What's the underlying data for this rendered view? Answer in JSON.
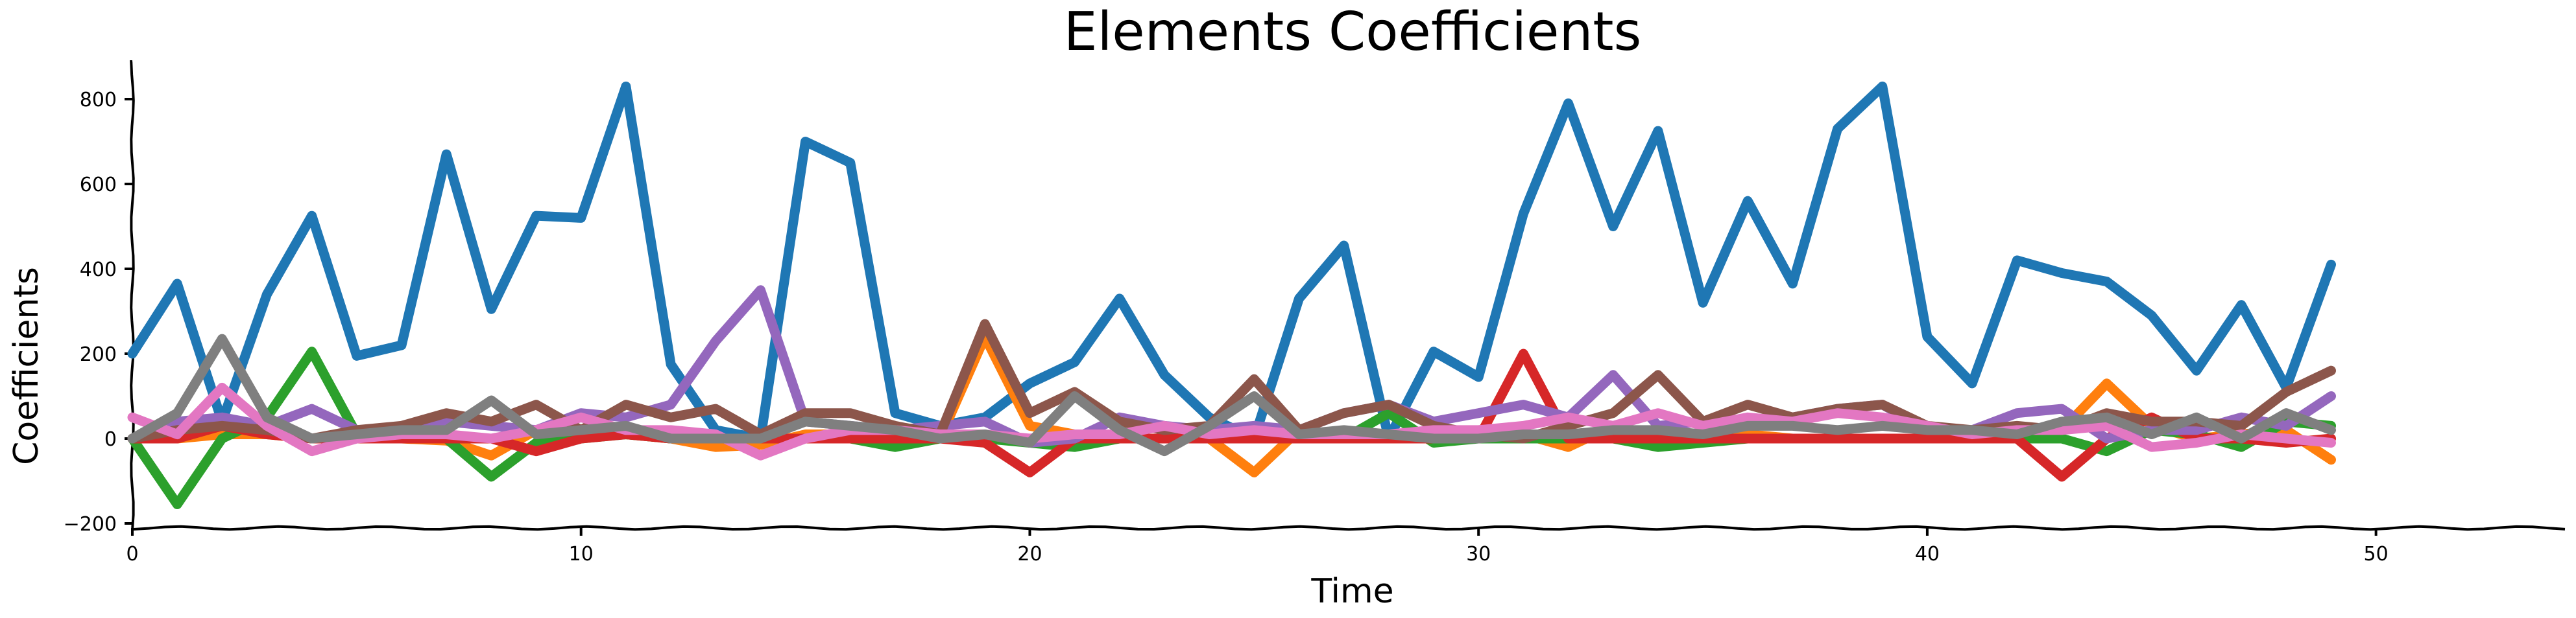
{
  "chart_data": {
    "type": "line",
    "title": "Elements Coefficients",
    "xlabel": "Time",
    "ylabel": "Coefficients",
    "xlim": [
      0,
      52
    ],
    "ylim": [
      -210,
      890
    ],
    "xticks": [
      0,
      10,
      20,
      30,
      40,
      50
    ],
    "yticks": [
      -200,
      0,
      200,
      400,
      600,
      800
    ],
    "grid": false,
    "legend": false,
    "x": [
      0,
      1,
      2,
      3,
      4,
      5,
      6,
      7,
      8,
      9,
      10,
      11,
      12,
      13,
      14,
      15,
      16,
      17,
      18,
      19,
      20,
      21,
      22,
      23,
      24,
      25,
      26,
      27,
      28,
      29,
      30,
      31,
      32,
      33,
      34,
      35,
      36,
      37,
      38,
      39,
      40,
      41,
      42,
      43,
      44,
      45,
      46,
      47,
      48,
      49
    ],
    "series": [
      {
        "color": "#1f77b4",
        "values": [
          200,
          365,
          40,
          340,
          525,
          195,
          220,
          670,
          305,
          525,
          520,
          830,
          175,
          20,
          0,
          700,
          650,
          60,
          30,
          50,
          130,
          180,
          330,
          150,
          50,
          0,
          330,
          455,
          0,
          205,
          145,
          530,
          790,
          500,
          725,
          320,
          560,
          365,
          730,
          830,
          240,
          130,
          420,
          390,
          370,
          290,
          160,
          315,
          120,
          410
        ]
      },
      {
        "color": "#ff7f0e",
        "values": [
          0,
          0,
          10,
          10,
          0,
          0,
          0,
          -5,
          -40,
          20,
          10,
          10,
          0,
          -20,
          -15,
          10,
          10,
          0,
          0,
          240,
          30,
          10,
          0,
          0,
          0,
          -80,
          20,
          0,
          10,
          0,
          0,
          10,
          -20,
          30,
          -5,
          0,
          10,
          0,
          0,
          0,
          0,
          10,
          0,
          20,
          130,
          30,
          0,
          10,
          20,
          -50
        ]
      },
      {
        "color": "#2ca02c",
        "values": [
          0,
          -155,
          0,
          50,
          205,
          10,
          0,
          0,
          -90,
          -10,
          0,
          10,
          0,
          0,
          0,
          0,
          0,
          -20,
          0,
          0,
          -10,
          -20,
          0,
          0,
          0,
          0,
          0,
          0,
          60,
          -10,
          0,
          0,
          0,
          0,
          -20,
          -10,
          0,
          0,
          0,
          0,
          0,
          0,
          0,
          0,
          -30,
          20,
          10,
          -20,
          40,
          30
        ]
      },
      {
        "color": "#d62728",
        "values": [
          0,
          0,
          30,
          10,
          0,
          0,
          0,
          0,
          0,
          -30,
          0,
          10,
          0,
          0,
          0,
          0,
          0,
          0,
          0,
          -10,
          -80,
          0,
          0,
          0,
          0,
          0,
          0,
          0,
          0,
          0,
          0,
          200,
          0,
          0,
          0,
          0,
          0,
          0,
          0,
          0,
          0,
          0,
          0,
          -90,
          0,
          50,
          0,
          0,
          -10,
          0
        ]
      },
      {
        "color": "#9467bd",
        "values": [
          0,
          40,
          50,
          30,
          70,
          20,
          20,
          40,
          30,
          20,
          60,
          50,
          80,
          230,
          350,
          40,
          30,
          20,
          30,
          40,
          -10,
          0,
          50,
          30,
          20,
          30,
          20,
          60,
          80,
          40,
          60,
          80,
          50,
          150,
          30,
          40,
          40,
          50,
          70,
          80,
          20,
          20,
          60,
          70,
          0,
          20,
          20,
          50,
          30,
          100
        ]
      },
      {
        "color": "#8c564b",
        "values": [
          0,
          20,
          30,
          20,
          0,
          20,
          30,
          60,
          40,
          80,
          20,
          80,
          50,
          70,
          10,
          60,
          60,
          30,
          10,
          270,
          60,
          110,
          40,
          20,
          30,
          140,
          20,
          60,
          80,
          30,
          10,
          0,
          30,
          60,
          150,
          40,
          80,
          50,
          70,
          80,
          30,
          20,
          30,
          20,
          60,
          40,
          40,
          30,
          110,
          160
        ]
      },
      {
        "color": "#e377c2",
        "values": [
          50,
          10,
          120,
          30,
          -30,
          0,
          10,
          10,
          0,
          20,
          50,
          20,
          20,
          10,
          -40,
          0,
          20,
          20,
          10,
          10,
          0,
          10,
          10,
          30,
          10,
          20,
          10,
          10,
          10,
          20,
          20,
          30,
          50,
          30,
          60,
          30,
          50,
          40,
          60,
          50,
          30,
          10,
          20,
          20,
          30,
          -20,
          -10,
          10,
          0,
          -10
        ]
      },
      {
        "color": "#7f7f7f",
        "values": [
          0,
          60,
          235,
          50,
          0,
          10,
          20,
          20,
          90,
          10,
          20,
          30,
          0,
          0,
          0,
          40,
          30,
          20,
          0,
          10,
          -10,
          100,
          20,
          -30,
          30,
          100,
          10,
          20,
          10,
          0,
          0,
          10,
          10,
          20,
          20,
          10,
          30,
          30,
          20,
          30,
          20,
          20,
          10,
          40,
          50,
          10,
          50,
          0,
          60,
          20
        ]
      }
    ]
  }
}
